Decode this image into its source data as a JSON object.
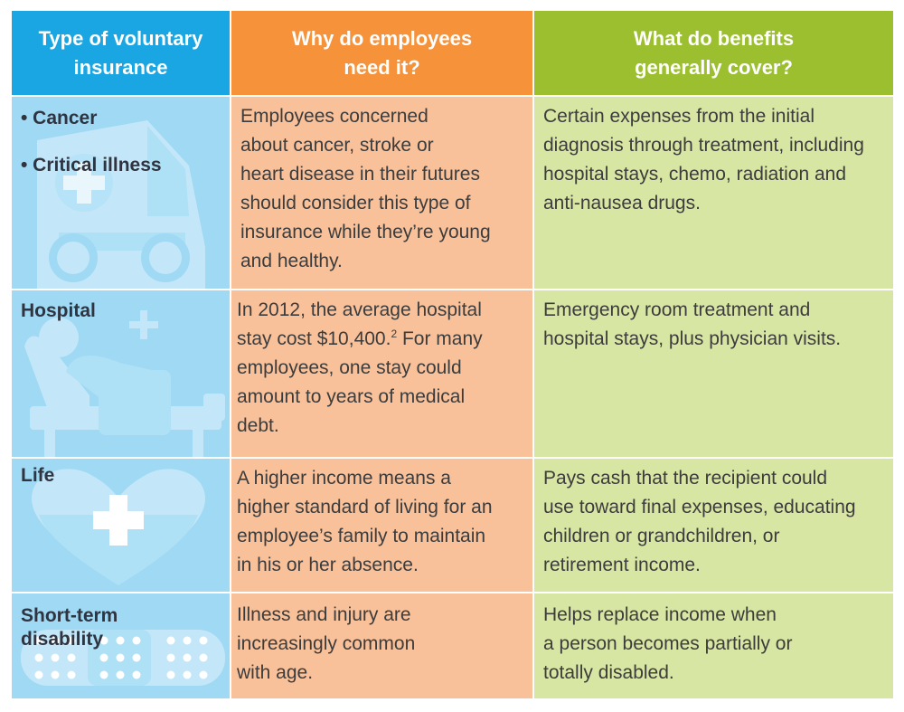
{
  "headers": [
    "Type of voluntary\ninsurance",
    "Why do employees\nneed it?",
    "What do benefits\ngenerally cover?"
  ],
  "colors": {
    "header_blue": "#1aa6e2",
    "header_orange": "#f5923a",
    "header_green": "#9cbf2f",
    "cell_blue": "#9fd9f4",
    "cell_orange": "#f9c19a",
    "cell_green": "#d8e6a4"
  },
  "rows": [
    {
      "type_bullets": [
        "• Cancer",
        "• Critical illness"
      ],
      "icon": "ambulance-icon",
      "why": "Employees concerned\nabout cancer, stroke or\nheart disease in their futures\nshould consider this type of\ninsurance while they’re young\nand healthy.",
      "cover": "Certain expenses from the initial\ndiagnosis through treatment, including\nhospital stays, chemo, radiation and\nanti-nausea drugs."
    },
    {
      "type": "Hospital",
      "icon": "hospital-bed-icon",
      "why_before": "In 2012, the average hospital\nstay cost $10,400.",
      "why_sup": "2",
      "why_after": " For many\nemployees, one stay could\namount to years of medical\ndebt.",
      "cover": "Emergency room treatment and\nhospital stays, plus physician visits."
    },
    {
      "type": "Life",
      "icon": "heart-cross-icon",
      "why": "A higher income means a\nhigher standard of living for an\nemployee’s family to maintain\nin his or her absence.",
      "cover": "Pays cash that the recipient could\nuse toward final expenses, educating\nchildren or grandchildren, or\nretirement income."
    },
    {
      "type": "Short-term\ndisability",
      "icon": "bandage-icon",
      "why": "Illness and injury are\nincreasingly common\nwith age.",
      "cover": "Helps replace income when\na person becomes partially or\ntotally disabled."
    }
  ]
}
